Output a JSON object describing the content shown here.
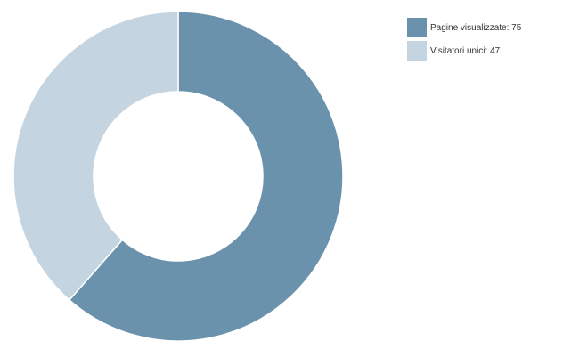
{
  "chart_data": {
    "type": "pie",
    "variant": "donut",
    "title": "",
    "legend_position": "top-right",
    "series": [
      {
        "name": "Pagine visualizzate",
        "value": 75,
        "color": "#6a92ad",
        "legend_label": "Pagine visualizzate: 75"
      },
      {
        "name": "Visitatori unici",
        "value": 47,
        "color": "#c4d5e1",
        "legend_label": "Visitatori unici: 47"
      }
    ]
  }
}
